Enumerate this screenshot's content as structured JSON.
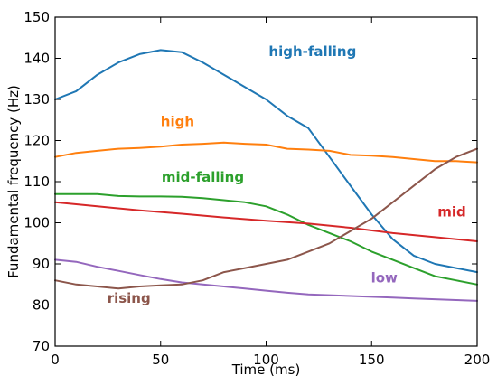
{
  "chart_data": {
    "type": "line",
    "title": "",
    "xlabel": "Time (ms)",
    "ylabel": "Fundamental frequency (Hz)",
    "xlim": [
      0,
      200
    ],
    "ylim": [
      70,
      150
    ],
    "xticks": [
      0,
      50,
      100,
      150,
      200
    ],
    "yticks": [
      70,
      80,
      90,
      100,
      110,
      120,
      130,
      140,
      150
    ],
    "grid": false,
    "legend": "none",
    "series": [
      {
        "name": "high-falling",
        "color": "#1f77b4",
        "x": [
          0,
          10,
          20,
          30,
          40,
          50,
          60,
          70,
          80,
          90,
          100,
          110,
          120,
          130,
          140,
          150,
          160,
          170,
          180,
          190,
          200
        ],
        "y": [
          130,
          132,
          136,
          139,
          141,
          142,
          141.5,
          139,
          136,
          133,
          130,
          126,
          123,
          116,
          109,
          102,
          96,
          92,
          90,
          89,
          88
        ]
      },
      {
        "name": "high",
        "color": "#ff7f0e",
        "x": [
          0,
          10,
          20,
          30,
          40,
          50,
          60,
          70,
          80,
          90,
          100,
          110,
          120,
          130,
          140,
          150,
          160,
          170,
          180,
          190,
          200
        ],
        "y": [
          116,
          117,
          117.5,
          118,
          118.2,
          118.5,
          119,
          119.2,
          119.5,
          119.2,
          119,
          118,
          117.8,
          117.5,
          116.5,
          116.3,
          116,
          115.5,
          115,
          115,
          114.7
        ]
      },
      {
        "name": "mid-falling",
        "color": "#2ca02c",
        "x": [
          0,
          10,
          20,
          30,
          40,
          50,
          60,
          70,
          80,
          90,
          100,
          110,
          120,
          130,
          140,
          150,
          160,
          170,
          180,
          190,
          200
        ],
        "y": [
          107,
          107,
          107,
          106.5,
          106.4,
          106.4,
          106.3,
          106,
          105.5,
          105,
          104,
          102,
          99.5,
          97.5,
          95.5,
          93,
          91,
          89,
          87,
          86,
          85
        ]
      },
      {
        "name": "mid",
        "color": "#d62728",
        "x": [
          0,
          20,
          40,
          60,
          80,
          100,
          120,
          140,
          160,
          180,
          200
        ],
        "y": [
          105,
          104,
          103,
          102.2,
          101.3,
          100.5,
          99.8,
          98.8,
          97.5,
          96.5,
          95.5
        ]
      },
      {
        "name": "low",
        "color": "#9467bd",
        "x": [
          0,
          10,
          20,
          30,
          40,
          50,
          60,
          70,
          80,
          90,
          100,
          110,
          120,
          130,
          140,
          150,
          160,
          170,
          180,
          190,
          200
        ],
        "y": [
          91,
          90.5,
          89.3,
          88.3,
          87.3,
          86.3,
          85.5,
          85,
          84.5,
          84,
          83.5,
          83,
          82.6,
          82.4,
          82.2,
          82,
          81.8,
          81.6,
          81.4,
          81.2,
          81
        ]
      },
      {
        "name": "rising",
        "color": "#8c564b",
        "x": [
          0,
          10,
          20,
          30,
          40,
          50,
          60,
          70,
          80,
          90,
          100,
          110,
          120,
          130,
          140,
          150,
          160,
          170,
          180,
          190,
          200
        ],
        "y": [
          86,
          85,
          84.5,
          84,
          84.5,
          84.8,
          85,
          86,
          88,
          89,
          90,
          91,
          93,
          95,
          98,
          101,
          105,
          109,
          113,
          116,
          118
        ]
      }
    ],
    "annotations": [
      {
        "text": "high-falling",
        "color": "#1f77b4",
        "x": 122,
        "y": 140.5
      },
      {
        "text": "high",
        "color": "#ff7f0e",
        "x": 58,
        "y": 123.5
      },
      {
        "text": "mid-falling",
        "color": "#2ca02c",
        "x": 70,
        "y": 110
      },
      {
        "text": "mid",
        "color": "#d62728",
        "x": 188,
        "y": 101.5
      },
      {
        "text": "low",
        "color": "#9467bd",
        "x": 156,
        "y": 85.5
      },
      {
        "text": "rising",
        "color": "#8c564b",
        "x": 35,
        "y": 80.5
      }
    ]
  }
}
